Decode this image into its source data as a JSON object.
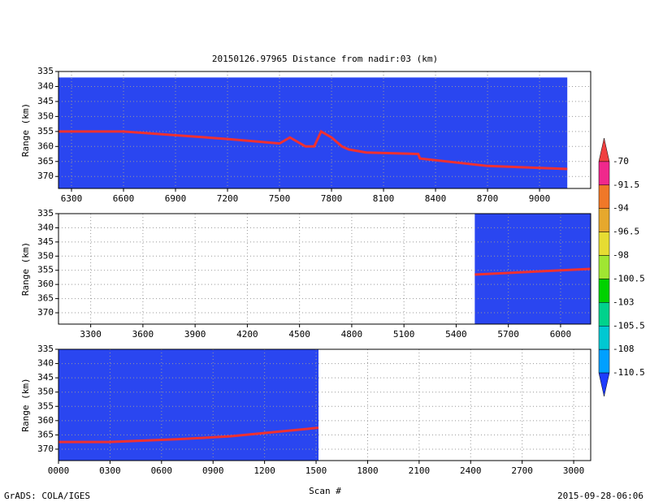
{
  "title": "20150126.97965    Distance from nadir:03 (km)",
  "x_label": "Scan #",
  "footer_left": "GrADS: COLA/IGES",
  "footer_right": "2015-09-28-06:06",
  "chart_data": [
    {
      "type": "line",
      "y_label": "Range (km)",
      "ylim": [
        335,
        374
      ],
      "yticks": [
        335,
        340,
        345,
        350,
        355,
        360,
        365,
        370
      ],
      "xlim": [
        6225,
        9295
      ],
      "xticks": [
        6300,
        6600,
        6900,
        7200,
        7500,
        7800,
        8100,
        8400,
        8700,
        9000
      ],
      "coverage_x": [
        6225,
        9160
      ],
      "coverage_y": [
        337,
        374
      ],
      "coverage_color": "#2a46f0",
      "grid": true,
      "series": [
        {
          "color": "#f03030",
          "x": [
            6225,
            6600,
            7200,
            7500,
            7560,
            7650,
            7700,
            7740,
            7800,
            7860,
            7900,
            8000,
            8300,
            8310,
            8700,
            9160
          ],
          "values": [
            355,
            355,
            357.5,
            359,
            357,
            360,
            360,
            355,
            357,
            360,
            361,
            362,
            362.5,
            364,
            366.5,
            367.5
          ]
        }
      ]
    },
    {
      "type": "line",
      "y_label": "Range (km)",
      "ylim": [
        335,
        374
      ],
      "yticks": [
        335,
        340,
        345,
        350,
        355,
        360,
        365,
        370
      ],
      "xlim": [
        3115,
        6173
      ],
      "xticks": [
        3300,
        3600,
        3900,
        4200,
        4500,
        4800,
        5100,
        5400,
        5700,
        6000
      ],
      "coverage_x": [
        5507,
        6173
      ],
      "coverage_y": [
        335,
        374
      ],
      "coverage_color": "#2a46f0",
      "grid": true,
      "series": [
        {
          "color": "#f03030",
          "x": [
            5507,
            6173
          ],
          "values": [
            356.5,
            354.5
          ]
        }
      ]
    },
    {
      "type": "line",
      "y_label": "Range (km)",
      "ylim": [
        335,
        374
      ],
      "yticks": [
        335,
        340,
        345,
        350,
        355,
        360,
        365,
        370
      ],
      "xlim": [
        0,
        3099
      ],
      "xticks": [
        {
          "value": 0,
          "label": "0000"
        },
        {
          "value": 300,
          "label": "0300"
        },
        {
          "value": 600,
          "label": "0600"
        },
        {
          "value": 900,
          "label": "0900"
        },
        1200,
        1500,
        1800,
        2100,
        2400,
        2700,
        3000
      ],
      "coverage_x": [
        0,
        1514
      ],
      "coverage_y": [
        335,
        374
      ],
      "coverage_color": "#2a46f0",
      "grid": true,
      "series": [
        {
          "color": "#f03030",
          "x": [
            0,
            300,
            700,
            1000,
            1514
          ],
          "values": [
            367.5,
            367.5,
            366.5,
            365.5,
            362.5
          ]
        }
      ]
    }
  ],
  "colorbar": {
    "levels": [
      -70,
      -91.5,
      -94,
      -96.5,
      -98,
      -100.5,
      -103,
      -105.5,
      -108,
      -110.5
    ],
    "colors": [
      "#f04040",
      "#f0288c",
      "#f07828",
      "#e6a82d",
      "#e6dc32",
      "#a0e632",
      "#00d200",
      "#00d28c",
      "#00c8d2",
      "#00a0ff",
      "#1e3cff"
    ]
  }
}
